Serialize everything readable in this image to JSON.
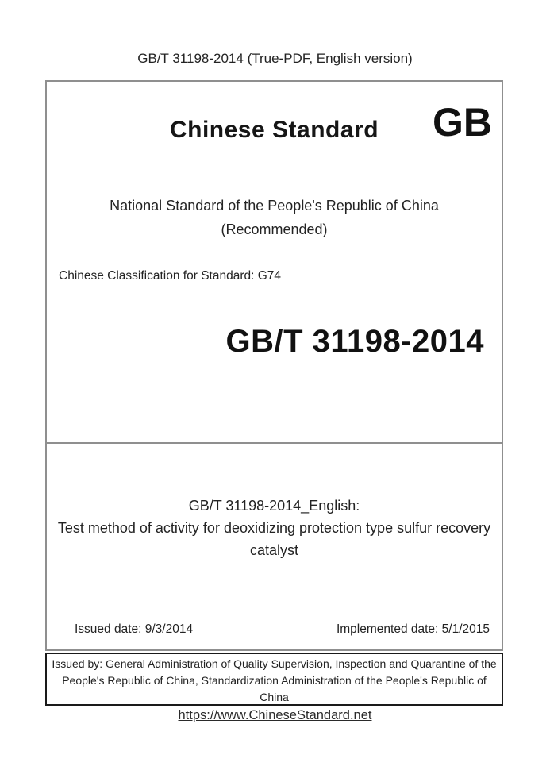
{
  "header": {
    "title": "GB/T 31198-2014 (True-PDF, English version)"
  },
  "cover": {
    "brand_title": "Chinese Standard",
    "brand_code": "GB",
    "national_line": "National Standard of the People's Republic of China",
    "recommended_line": "(Recommended)",
    "classification_line": "Chinese Classification for Standard: G74",
    "standard_number": "GB/T 31198-2014",
    "english_heading": "GB/T 31198-2014_English:",
    "english_title": "Test method of activity for deoxidizing protection type sulfur recovery catalyst",
    "issued_date": "Issued date: 9/3/2014",
    "implemented_date": "Implemented date: 5/1/2015"
  },
  "issuer": {
    "text": "Issued by: General Administration of Quality Supervision, Inspection and Quarantine of the People's Republic of China, Standardization Administration of the People's Republic of China"
  },
  "footer": {
    "url": "https://www.ChineseStandard.net"
  },
  "colors": {
    "main_box_border": "#8f8f8f",
    "issuer_box_border": "#1a1a1a",
    "text": "#232323",
    "background": "#ffffff"
  }
}
